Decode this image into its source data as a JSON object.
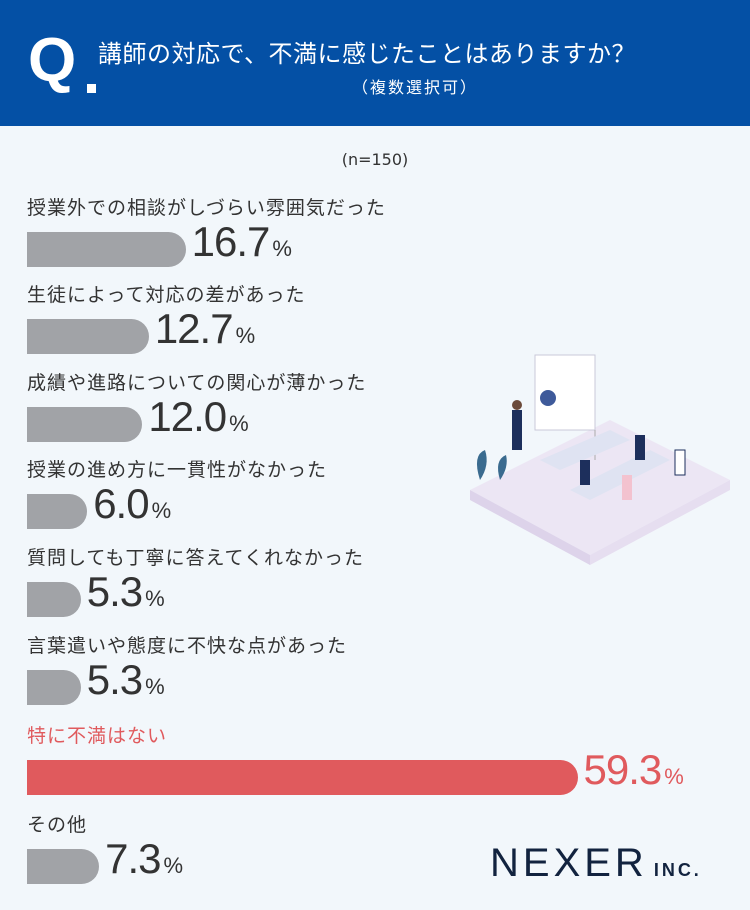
{
  "header": {
    "q": "Q",
    "title": "講師の対応で、不満に感じたことはありますか？",
    "subtitle": "（複数選択可）"
  },
  "sample": "(n=150)",
  "chart_data": {
    "type": "bar",
    "orientation": "horizontal",
    "title": "講師の対応で、不満に感じたことはありますか？（複数選択可）",
    "unit": "%",
    "categories": [
      "授業外での相談がしづらい雰囲気だった",
      "生徒によって対応の差があった",
      "成績や進路についての関心が薄かった",
      "授業の進め方に一貫性がなかった",
      "質問しても丁寧に答えてくれなかった",
      "言葉遣いや態度に不快な点があった",
      "特に不満はない",
      "その他"
    ],
    "values": [
      16.7,
      12.7,
      12.0,
      6.0,
      5.3,
      5.3,
      59.3,
      7.3
    ],
    "labels": [
      "16.7",
      "12.7",
      "12.0",
      "6.0",
      "5.3",
      "5.3",
      "59.3",
      "7.3"
    ],
    "highlight_index": 6,
    "colors": {
      "default": "#a1a3a7",
      "highlight": "#e05a5d"
    }
  },
  "logo": {
    "name": "NEXER",
    "suffix": "INC."
  }
}
